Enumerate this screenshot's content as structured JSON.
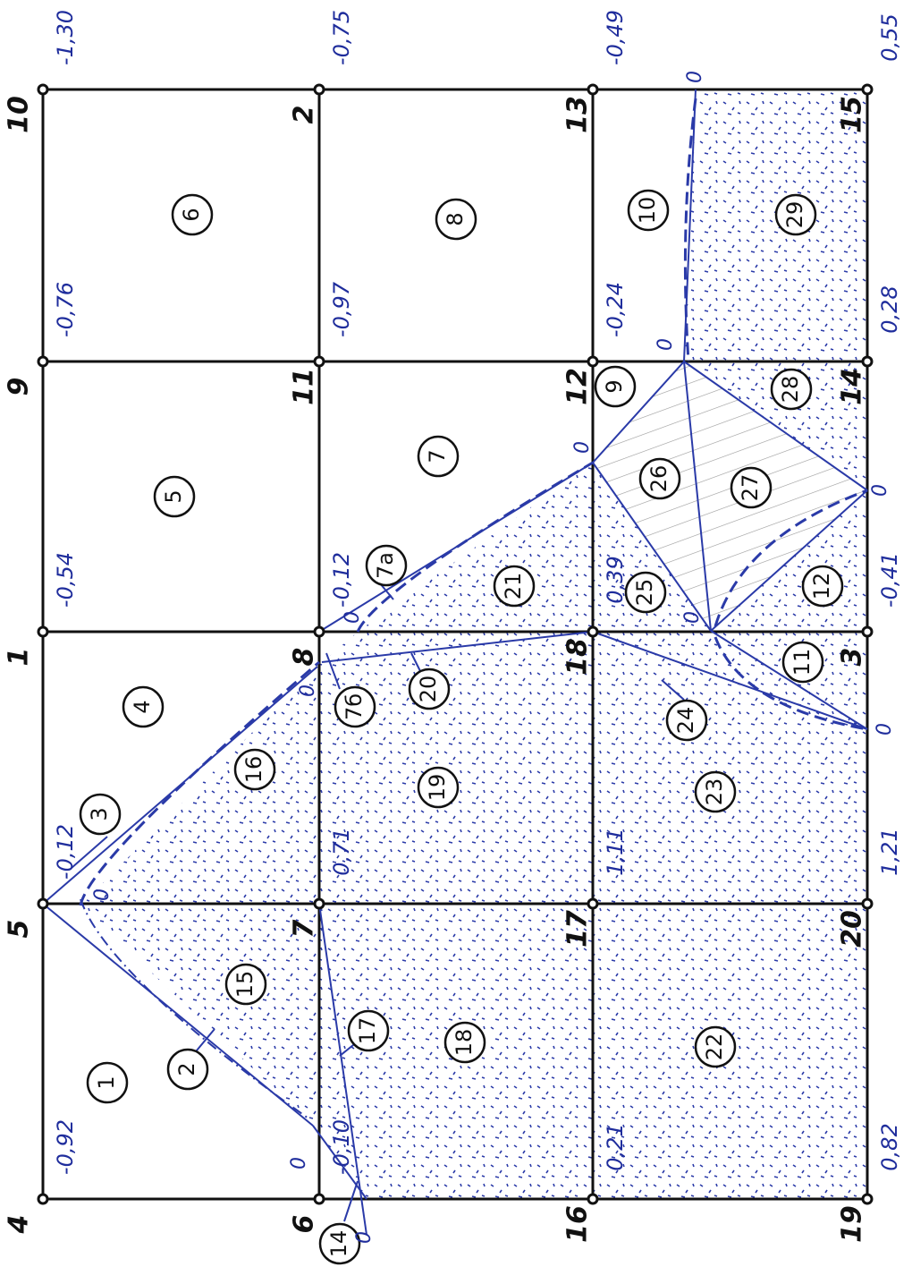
{
  "nodes": [
    {
      "label": "10",
      "value": "-1,30"
    },
    {
      "label": "2",
      "value": "-0,75"
    },
    {
      "label": "13",
      "value": "-0,49"
    },
    {
      "label": "15",
      "value": "0,55"
    },
    {
      "label": "9",
      "value": "-0,76"
    },
    {
      "label": "11",
      "value": "-0,97"
    },
    {
      "label": "12",
      "value": "-0,24"
    },
    {
      "label": "14",
      "value": "0,28"
    },
    {
      "label": "1",
      "value": "-0,54"
    },
    {
      "label": "8",
      "value": "-0,12"
    },
    {
      "label": "18",
      "value": "0,39"
    },
    {
      "label": "3",
      "value": "-0,41"
    },
    {
      "label": "5",
      "value": "-0,12"
    },
    {
      "label": "7",
      "value": "0,71"
    },
    {
      "label": "17",
      "value": "1,11"
    },
    {
      "label": "20",
      "value": "1,21"
    },
    {
      "label": "4",
      "value": "-0,92"
    },
    {
      "label": "6",
      "value": "-0,10"
    },
    {
      "label": "16",
      "value": "0,21"
    },
    {
      "label": "19",
      "value": "0,82"
    }
  ],
  "elements": [
    "6",
    "5",
    "4",
    "3",
    "16",
    "15",
    "2",
    "1",
    "8",
    "7",
    "7a",
    "21",
    "7б",
    "20",
    "19",
    "17",
    "18",
    "14",
    "10",
    "29",
    "9",
    "28",
    "26",
    "27",
    "25",
    "12",
    "11",
    "24",
    "23",
    "22"
  ],
  "zeros": [
    "0",
    "0",
    "0",
    "0",
    "0",
    "0",
    "0",
    "0",
    "0",
    "0",
    "0"
  ]
}
